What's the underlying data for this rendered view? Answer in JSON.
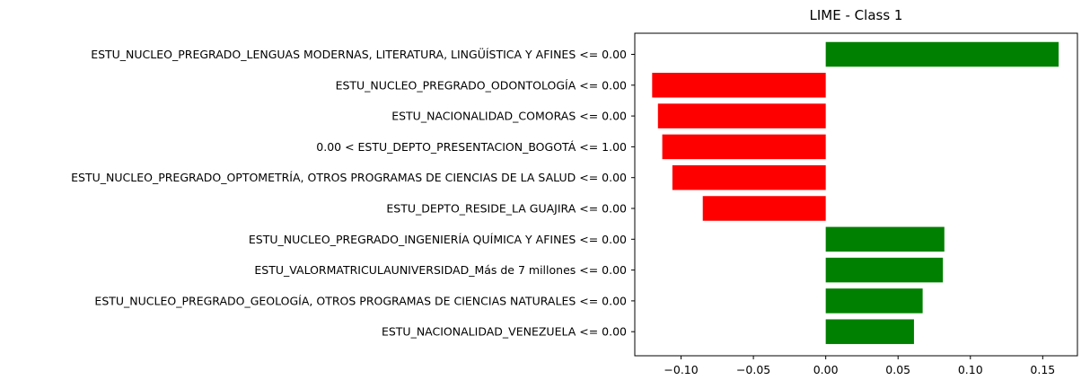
{
  "chart_data": {
    "type": "bar",
    "orientation": "horizontal",
    "title": "LIME - Class 1",
    "xlabel": "",
    "ylabel": "",
    "xlim": [
      -0.132,
      0.174
    ],
    "grid": false,
    "colors": {
      "positive": "#008000",
      "negative": "#ff0000"
    },
    "x_ticks": [
      {
        "value": -0.1,
        "label": "−0.10"
      },
      {
        "value": -0.05,
        "label": "−0.05"
      },
      {
        "value": 0.0,
        "label": "0.00"
      },
      {
        "value": 0.05,
        "label": "0.05"
      },
      {
        "value": 0.1,
        "label": "0.10"
      },
      {
        "value": 0.15,
        "label": "0.15"
      }
    ],
    "categories": [
      "ESTU_NUCLEO_PREGRADO_LENGUAS MODERNAS, LITERATURA, LINGÜÍSTICA Y AFINES <= 0.00",
      "ESTU_NUCLEO_PREGRADO_ODONTOLOGÍA <= 0.00",
      "ESTU_NACIONALIDAD_COMORAS <= 0.00",
      "0.00 < ESTU_DEPTO_PRESENTACION_BOGOTÁ <= 1.00",
      "ESTU_NUCLEO_PREGRADO_OPTOMETRÍA, OTROS PROGRAMAS DE CIENCIAS DE LA SALUD <= 0.00",
      "ESTU_DEPTO_RESIDE_LA GUAJIRA <= 0.00",
      "ESTU_NUCLEO_PREGRADO_INGENIERÍA QUÍMICA Y AFINES <= 0.00",
      "ESTU_VALORMATRICULAUNIVERSIDAD_Más de 7 millones <= 0.00",
      "ESTU_NUCLEO_PREGRADO_GEOLOGÍA, OTROS PROGRAMAS DE CIENCIAS NATURALES <= 0.00",
      "ESTU_NACIONALIDAD_VENEZUELA <= 0.00"
    ],
    "values": [
      0.161,
      -0.12,
      -0.116,
      -0.113,
      -0.106,
      -0.085,
      0.082,
      0.081,
      0.067,
      0.061
    ]
  }
}
